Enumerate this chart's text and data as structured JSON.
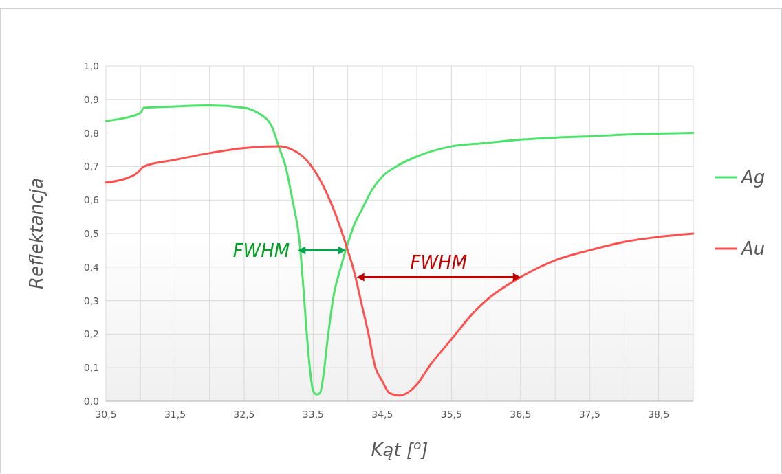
{
  "chart_data": {
    "type": "line",
    "xlabel": "Kąt [$^{o}$]",
    "ylabel": "Reflektancja",
    "xlim": [
      30.5,
      39
    ],
    "xticks": [
      {
        "value": 30.5,
        "label": "30,5"
      },
      {
        "value": 31,
        "label": null
      },
      {
        "value": 31.5,
        "label": "31,5"
      },
      {
        "value": 32,
        "label": null
      },
      {
        "value": 32.5,
        "label": "32,5"
      },
      {
        "value": 33,
        "label": null
      },
      {
        "value": 33.5,
        "label": "33,5"
      },
      {
        "value": 34,
        "label": null
      },
      {
        "value": 34.5,
        "label": "34,5"
      },
      {
        "value": 35,
        "label": null
      },
      {
        "value": 35.5,
        "label": "35,5"
      },
      {
        "value": 36,
        "label": null
      },
      {
        "value": 36.5,
        "label": "36,5"
      },
      {
        "value": 37,
        "label": null
      },
      {
        "value": 37.5,
        "label": "37,5"
      },
      {
        "value": 38,
        "label": null
      },
      {
        "value": 38.5,
        "label": "38,5"
      },
      {
        "value": 39,
        "label": null
      }
    ],
    "ylim": [
      0,
      1
    ],
    "yticks": [
      {
        "value": 0,
        "label": "0,0"
      },
      {
        "value": 0.1,
        "label": "0,1"
      },
      {
        "value": 0.2,
        "label": "0,2"
      },
      {
        "value": 0.3,
        "label": "0,3"
      },
      {
        "value": 0.4,
        "label": "0,4"
      },
      {
        "value": 0.5,
        "label": "0,5"
      },
      {
        "value": 0.6,
        "label": "0,6"
      },
      {
        "value": 0.7,
        "label": "0,7"
      },
      {
        "value": 0.8,
        "label": "0,8"
      },
      {
        "value": 0.9,
        "label": "0,9"
      },
      {
        "value": 1,
        "label": "1,0"
      }
    ],
    "grid": true,
    "legend": "right",
    "marker": "none",
    "line_style": "solid",
    "series": [
      {
        "name": "Ag",
        "color": "#4de36b",
        "x": [
          30.5,
          30.8,
          31.0,
          31.05,
          31.5,
          32.0,
          32.5,
          32.7,
          32.9,
          33.0,
          33.1,
          33.2,
          33.3,
          33.35,
          33.4,
          33.45,
          33.5,
          33.55,
          33.6,
          33.65,
          33.7,
          33.8,
          33.9,
          34.0,
          34.1,
          34.2,
          34.35,
          34.5,
          34.7,
          35.0,
          35.5,
          36.0,
          36.5,
          37.0,
          37.5,
          38.0,
          38.5,
          39.0
        ],
        "values": [
          0.836,
          0.846,
          0.86,
          0.875,
          0.879,
          0.882,
          0.875,
          0.86,
          0.82,
          0.76,
          0.7,
          0.6,
          0.48,
          0.36,
          0.22,
          0.1,
          0.03,
          0.02,
          0.025,
          0.08,
          0.17,
          0.32,
          0.4,
          0.47,
          0.53,
          0.57,
          0.63,
          0.67,
          0.7,
          0.73,
          0.76,
          0.77,
          0.78,
          0.786,
          0.79,
          0.795,
          0.798,
          0.8
        ]
      },
      {
        "name": "Au",
        "color": "#ff5050",
        "x": [
          30.5,
          30.8,
          30.95,
          31.05,
          31.5,
          32.0,
          32.5,
          33.0,
          33.2,
          33.4,
          33.6,
          33.8,
          34.0,
          34.1,
          34.2,
          34.3,
          34.4,
          34.5,
          34.6,
          34.75,
          34.9,
          35.0,
          35.2,
          35.4,
          35.6,
          35.8,
          36.0,
          36.5,
          37.0,
          37.5,
          38.0,
          38.5,
          39.0
        ],
        "values": [
          0.652,
          0.665,
          0.68,
          0.7,
          0.72,
          0.74,
          0.755,
          0.76,
          0.75,
          0.72,
          0.66,
          0.57,
          0.45,
          0.38,
          0.29,
          0.2,
          0.1,
          0.06,
          0.025,
          0.017,
          0.03,
          0.05,
          0.11,
          0.16,
          0.21,
          0.26,
          0.3,
          0.37,
          0.42,
          0.45,
          0.475,
          0.49,
          0.5
        ]
      }
    ],
    "annotations": [
      {
        "text": "FWHM",
        "x": 33.28,
        "y": 0.45
      },
      {
        "text": "FWHM",
        "x": 34.13,
        "y": 0.37
      }
    ]
  }
}
